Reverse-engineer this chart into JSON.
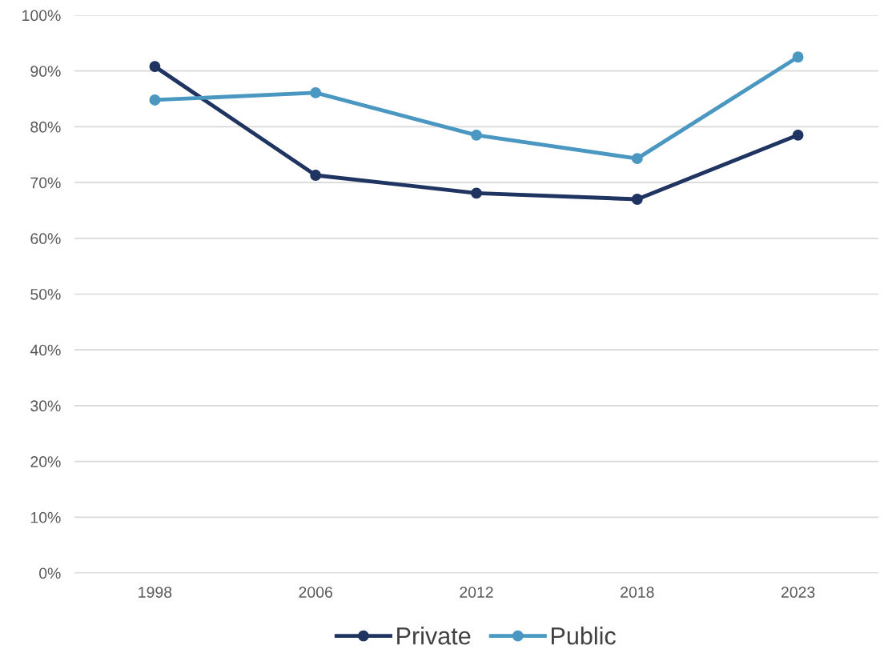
{
  "chart_data": {
    "type": "line",
    "categories": [
      "1998",
      "2006",
      "2012",
      "2018",
      "2023"
    ],
    "series": [
      {
        "name": "Private",
        "color": "#1f3461",
        "values": [
          90.8,
          71.3,
          68.1,
          67.0,
          78.5
        ]
      },
      {
        "name": "Public",
        "color": "#4a97c2",
        "values": [
          84.8,
          86.1,
          78.5,
          74.3,
          92.5
        ]
      }
    ],
    "ylim": [
      0,
      100
    ],
    "yticks": [
      {
        "value": 0,
        "label": "0%"
      },
      {
        "value": 10,
        "label": "10%"
      },
      {
        "value": 20,
        "label": "20%"
      },
      {
        "value": 30,
        "label": "30%"
      },
      {
        "value": 40,
        "label": "40%"
      },
      {
        "value": 50,
        "label": "50%"
      },
      {
        "value": 60,
        "label": "60%"
      },
      {
        "value": 70,
        "label": "70%"
      },
      {
        "value": 80,
        "label": "80%"
      },
      {
        "value": 90,
        "label": "90%"
      },
      {
        "value": 100,
        "label": "100%"
      }
    ],
    "grid": "y",
    "legend": "bottom",
    "marker": "circle",
    "line_style": "solid"
  }
}
